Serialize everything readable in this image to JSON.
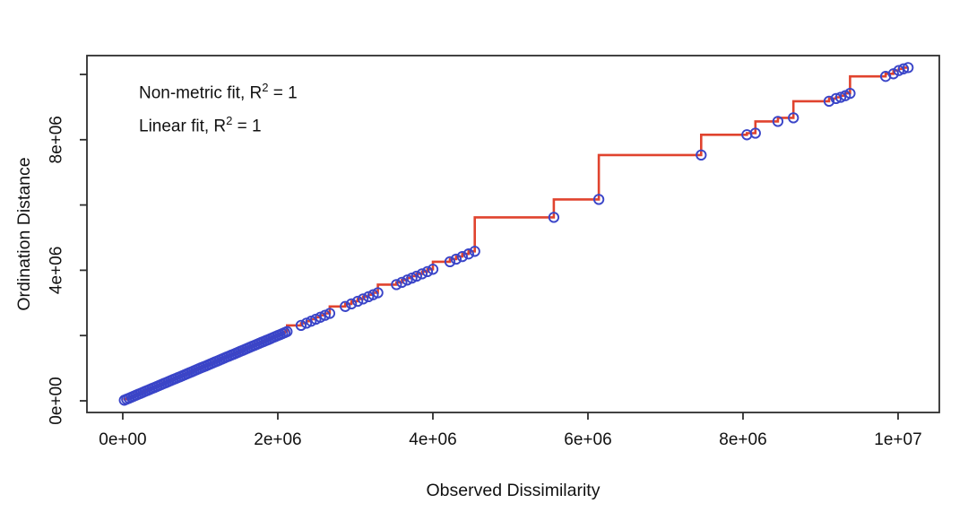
{
  "page": {
    "background": "#ffffff"
  },
  "chart_data": {
    "type": "scatter",
    "subtype": "shepard-stressplot-with-monotone-step-fit",
    "xlabel": "Observed Dissimilarity",
    "ylabel": "Ordination Distance",
    "annotation_lines": [
      {
        "prefix": "Non-metric fit, R",
        "sup": "2",
        "suffix": " = 1"
      },
      {
        "prefix": "Linear fit, R",
        "sup": "2",
        "suffix": " = 1"
      }
    ],
    "grid": false,
    "legend": null,
    "xlim": [
      -462000,
      10532000
    ],
    "ylim": [
      -357000,
      10577000
    ],
    "x_axis": {
      "ticks": [
        {
          "value": 0,
          "label": "0e+00"
        },
        {
          "value": 2000000,
          "label": "2e+06"
        },
        {
          "value": 4000000,
          "label": "4e+06"
        },
        {
          "value": 6000000,
          "label": "6e+06"
        },
        {
          "value": 8000000,
          "label": "8e+06"
        },
        {
          "value": 10000000,
          "label": "1e+07"
        }
      ]
    },
    "y_axis": {
      "ticks": [
        {
          "value": 0,
          "label": "0e+00"
        },
        {
          "value": 2000000,
          "label": ""
        },
        {
          "value": 4000000,
          "label": "4e+06"
        },
        {
          "value": 6000000,
          "label": ""
        },
        {
          "value": 8000000,
          "label": "8e+06"
        },
        {
          "value": 10000000,
          "label": ""
        }
      ]
    },
    "unit_scale": 1000000,
    "series": [
      {
        "name": "dissimilarity-points",
        "type": "scatter",
        "color": "#3a45c8"
      },
      {
        "name": "monotone-fit-line",
        "type": "step",
        "color": "#e0432e"
      }
    ],
    "points_e6": [
      [
        0.02,
        0.02
      ],
      [
        0.05,
        0.05
      ],
      [
        0.08,
        0.08
      ],
      [
        0.11,
        0.11
      ],
      [
        0.14,
        0.14
      ],
      [
        0.17,
        0.17
      ],
      [
        0.2,
        0.2
      ],
      [
        0.23,
        0.23
      ],
      [
        0.26,
        0.26
      ],
      [
        0.29,
        0.29
      ],
      [
        0.32,
        0.32
      ],
      [
        0.35,
        0.35
      ],
      [
        0.38,
        0.38
      ],
      [
        0.41,
        0.41
      ],
      [
        0.44,
        0.44
      ],
      [
        0.47,
        0.47
      ],
      [
        0.5,
        0.5
      ],
      [
        0.53,
        0.53
      ],
      [
        0.56,
        0.56
      ],
      [
        0.59,
        0.59
      ],
      [
        0.62,
        0.62
      ],
      [
        0.65,
        0.65
      ],
      [
        0.68,
        0.68
      ],
      [
        0.71,
        0.71
      ],
      [
        0.74,
        0.74
      ],
      [
        0.77,
        0.77
      ],
      [
        0.8,
        0.8
      ],
      [
        0.83,
        0.83
      ],
      [
        0.86,
        0.86
      ],
      [
        0.89,
        0.89
      ],
      [
        0.92,
        0.92
      ],
      [
        0.95,
        0.95
      ],
      [
        0.98,
        0.98
      ],
      [
        1.01,
        1.01
      ],
      [
        1.04,
        1.04
      ],
      [
        1.07,
        1.07
      ],
      [
        1.1,
        1.1
      ],
      [
        1.13,
        1.13
      ],
      [
        1.16,
        1.16
      ],
      [
        1.19,
        1.19
      ],
      [
        1.22,
        1.22
      ],
      [
        1.25,
        1.25
      ],
      [
        1.28,
        1.28
      ],
      [
        1.31,
        1.31
      ],
      [
        1.34,
        1.34
      ],
      [
        1.37,
        1.37
      ],
      [
        1.4,
        1.4
      ],
      [
        1.43,
        1.43
      ],
      [
        1.46,
        1.46
      ],
      [
        1.49,
        1.49
      ],
      [
        1.52,
        1.52
      ],
      [
        1.55,
        1.55
      ],
      [
        1.58,
        1.58
      ],
      [
        1.61,
        1.61
      ],
      [
        1.64,
        1.64
      ],
      [
        1.67,
        1.67
      ],
      [
        1.7,
        1.7
      ],
      [
        1.73,
        1.73
      ],
      [
        1.76,
        1.76
      ],
      [
        1.79,
        1.79
      ],
      [
        1.82,
        1.82
      ],
      [
        1.85,
        1.85
      ],
      [
        1.88,
        1.88
      ],
      [
        1.91,
        1.91
      ],
      [
        1.94,
        1.94
      ],
      [
        1.97,
        1.97
      ],
      [
        2.0,
        2.0
      ],
      [
        2.03,
        2.03
      ],
      [
        2.06,
        2.06
      ],
      [
        2.09,
        2.09
      ],
      [
        2.12,
        2.12
      ],
      [
        2.3,
        2.31
      ],
      [
        2.37,
        2.38
      ],
      [
        2.43,
        2.44
      ],
      [
        2.49,
        2.5
      ],
      [
        2.55,
        2.56
      ],
      [
        2.61,
        2.62
      ],
      [
        2.67,
        2.68
      ],
      [
        2.87,
        2.89
      ],
      [
        2.95,
        2.97
      ],
      [
        3.03,
        3.05
      ],
      [
        3.1,
        3.12
      ],
      [
        3.17,
        3.19
      ],
      [
        3.23,
        3.25
      ],
      [
        3.29,
        3.31
      ],
      [
        3.53,
        3.56
      ],
      [
        3.6,
        3.63
      ],
      [
        3.67,
        3.7
      ],
      [
        3.73,
        3.76
      ],
      [
        3.79,
        3.82
      ],
      [
        3.86,
        3.89
      ],
      [
        3.93,
        3.96
      ],
      [
        4.0,
        4.03
      ],
      [
        4.22,
        4.26
      ],
      [
        4.3,
        4.34
      ],
      [
        4.38,
        4.42
      ],
      [
        4.46,
        4.5
      ],
      [
        4.54,
        4.58
      ],
      [
        5.56,
        5.62
      ],
      [
        6.14,
        6.17
      ],
      [
        7.46,
        7.53
      ],
      [
        8.05,
        8.15
      ],
      [
        8.16,
        8.2
      ],
      [
        8.45,
        8.56
      ],
      [
        8.65,
        8.67
      ],
      [
        9.11,
        9.18
      ],
      [
        9.2,
        9.26
      ],
      [
        9.26,
        9.3
      ],
      [
        9.32,
        9.35
      ],
      [
        9.38,
        9.42
      ],
      [
        9.84,
        9.94
      ],
      [
        9.94,
        10.02
      ],
      [
        10.01,
        10.12
      ],
      [
        10.07,
        10.17
      ],
      [
        10.13,
        10.21
      ]
    ],
    "colors": {
      "points": "#3a45c8",
      "fit_line": "#e0432e",
      "axis": "#2e2e2e",
      "text": "#111111"
    }
  }
}
